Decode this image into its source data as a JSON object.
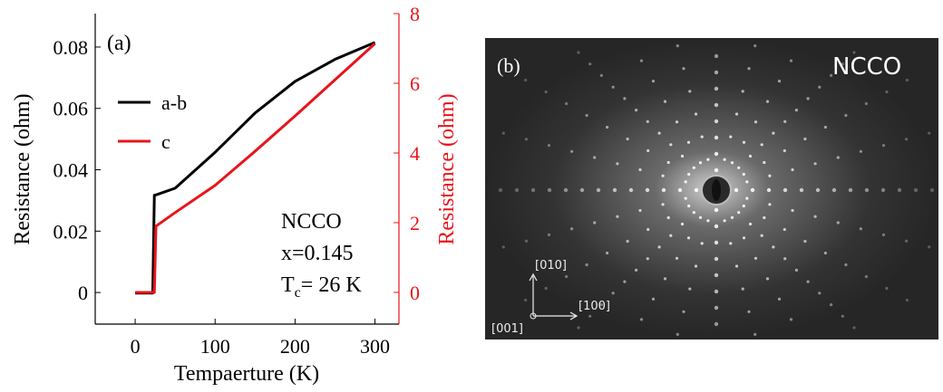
{
  "chart_data": {
    "type": "line",
    "xlabel": "Tempaerture (K)",
    "ylabel": "Resistance (ohm)",
    "y2label": "Resistance (ohm)",
    "panel_label": "(a)",
    "annotations": [
      "NCCO",
      "x=0.145"
    ],
    "tc_label": {
      "symbol": "T",
      "subscript": "c",
      "text": "= 26 K"
    },
    "x": [
      0,
      10,
      20,
      22,
      24,
      26,
      50,
      100,
      150,
      200,
      250,
      300
    ],
    "series": [
      {
        "name": "a-b",
        "color": "#000000",
        "axis": "y",
        "values": [
          -0.0002,
          -0.0002,
          -0.0002,
          -0.0002,
          0.0317,
          0.0318,
          0.034,
          0.0457,
          0.0585,
          0.0688,
          0.076,
          0.0815
        ]
      },
      {
        "name": "c",
        "color": "#e8141b",
        "axis": "y2",
        "values": [
          0,
          0,
          0,
          0,
          0,
          1.9,
          2.29,
          3.07,
          4.05,
          5.06,
          6.1,
          7.14
        ]
      }
    ],
    "xlim": [
      -50,
      330
    ],
    "xticks": [
      0,
      100,
      200,
      300
    ],
    "ylim": [
      -0.0103,
      0.0909
    ],
    "yticks": [
      0,
      0.02,
      0.04,
      0.06,
      0.08
    ],
    "y2lim": [
      -0.91,
      8
    ],
    "y2ticks": [
      0,
      2,
      4,
      6,
      8
    ],
    "y2color": "#e8141b",
    "legend": "upper left",
    "grid": false
  },
  "image_panel": {
    "panel_label": "(b)",
    "title": "NCCO",
    "axes": [
      "[010]",
      "[100]",
      "[001]"
    ]
  }
}
